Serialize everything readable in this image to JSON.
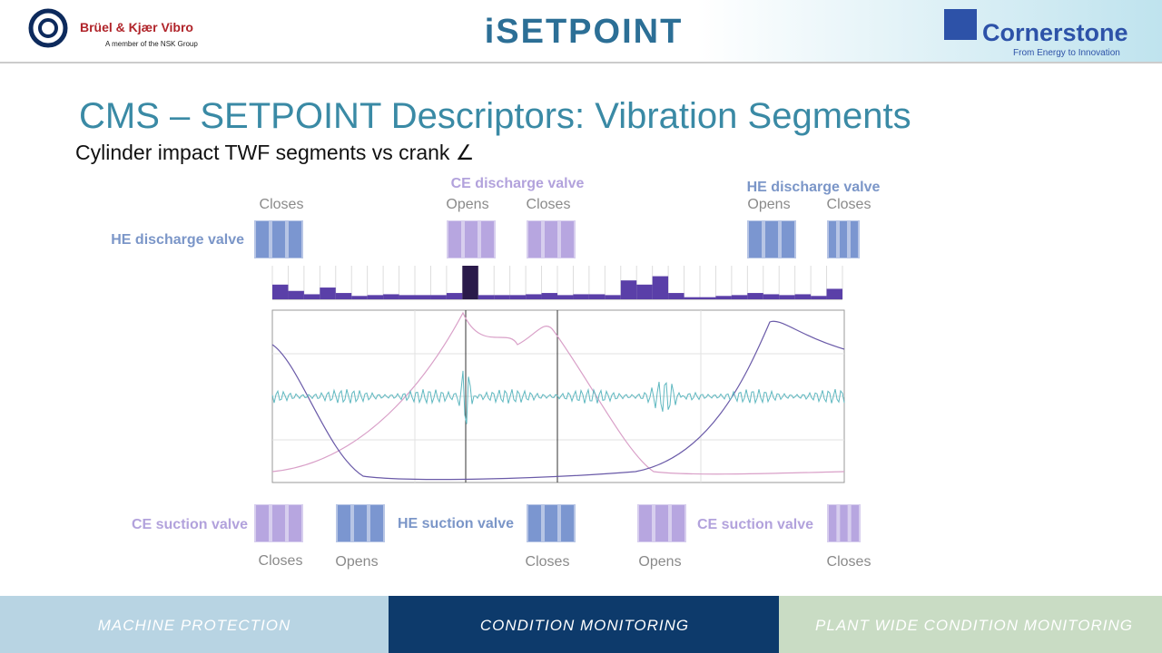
{
  "header": {
    "company": "Brüel & Kjær Vibro",
    "company_tagline": "A member of the NSK Group",
    "product": "iSETPOINT",
    "partner": "Cornerstone",
    "partner_tagline": "From Energy to Innovation"
  },
  "title": "CMS – SETPOINT Descriptors: Vibration Segments",
  "subtitle": "Cylinder impact TWF segments vs crank ∠",
  "top_labels": {
    "he_closes": "Closes",
    "he_discharge": "HE  discharge valve",
    "ce_discharge": "CE discharge valve",
    "ce_opens": "Opens",
    "ce_closes": "Closes",
    "he_discharge_right": "HE discharge valve",
    "he_opens": "Opens",
    "he_closes_right": "Closes"
  },
  "bottom_labels": {
    "ce_suction": "CE suction valve",
    "ce_closes": "Closes",
    "he_opens": "Opens",
    "he_suction": "HE suction valve",
    "he_closes": "Closes",
    "ce_opens": "Opens",
    "ce_suction_right": "CE suction valve",
    "ce_closes_right": "Closes"
  },
  "chart_data": {
    "type": "bar",
    "values": [
      0.35,
      0.2,
      0.12,
      0.28,
      0.15,
      0.08,
      0.1,
      0.12,
      0.1,
      0.1,
      0.1,
      0.15,
      0.8,
      0.1,
      0.1,
      0.1,
      0.12,
      0.15,
      0.1,
      0.12,
      0.12,
      0.1,
      0.45,
      0.35,
      0.55,
      0.15,
      0.05,
      0.05,
      0.08,
      0.1,
      0.15,
      0.12,
      0.1,
      0.12,
      0.08,
      0.25
    ],
    "color": "#5a3fa8",
    "highlight_color": "#2a1a4a",
    "highlight_index": 12,
    "ylim": [
      0,
      0.8
    ]
  },
  "footer": {
    "tabs": [
      "MACHINE PROTECTION",
      "CONDITION MONITORING",
      "PLANT WIDE CONDITION MONITORING"
    ]
  }
}
